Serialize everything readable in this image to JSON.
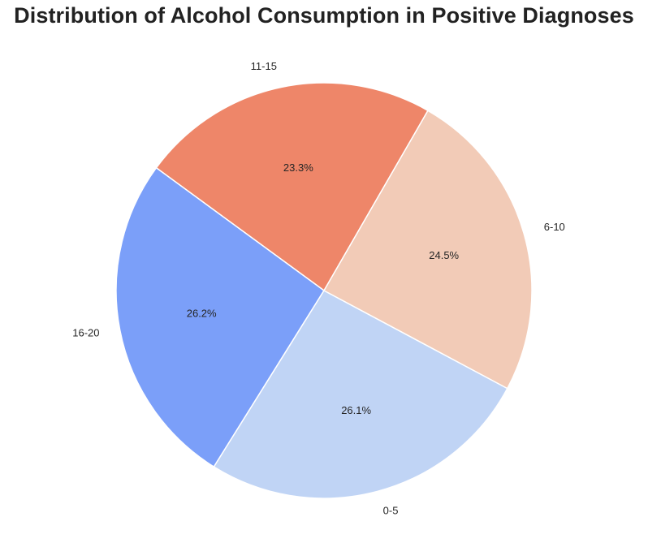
{
  "chart_data": {
    "type": "pie",
    "title": "Distribution of Alcohol Consumption in Positive Diagnoses",
    "start_angle_deg": 60,
    "direction": "counterclockwise",
    "slices": [
      {
        "label": "11-15",
        "value": 23.3,
        "pct_label": "23.3%",
        "color": "#ee8669"
      },
      {
        "label": "16-20",
        "value": 26.2,
        "pct_label": "26.2%",
        "color": "#7b9ff9"
      },
      {
        "label": "0-5",
        "value": 26.1,
        "pct_label": "26.1%",
        "color": "#c0d4f5"
      },
      {
        "label": "6-10",
        "value": 24.5,
        "pct_label": "24.5%",
        "color": "#f2cbb7"
      }
    ],
    "edge_color": "#ffffff"
  }
}
